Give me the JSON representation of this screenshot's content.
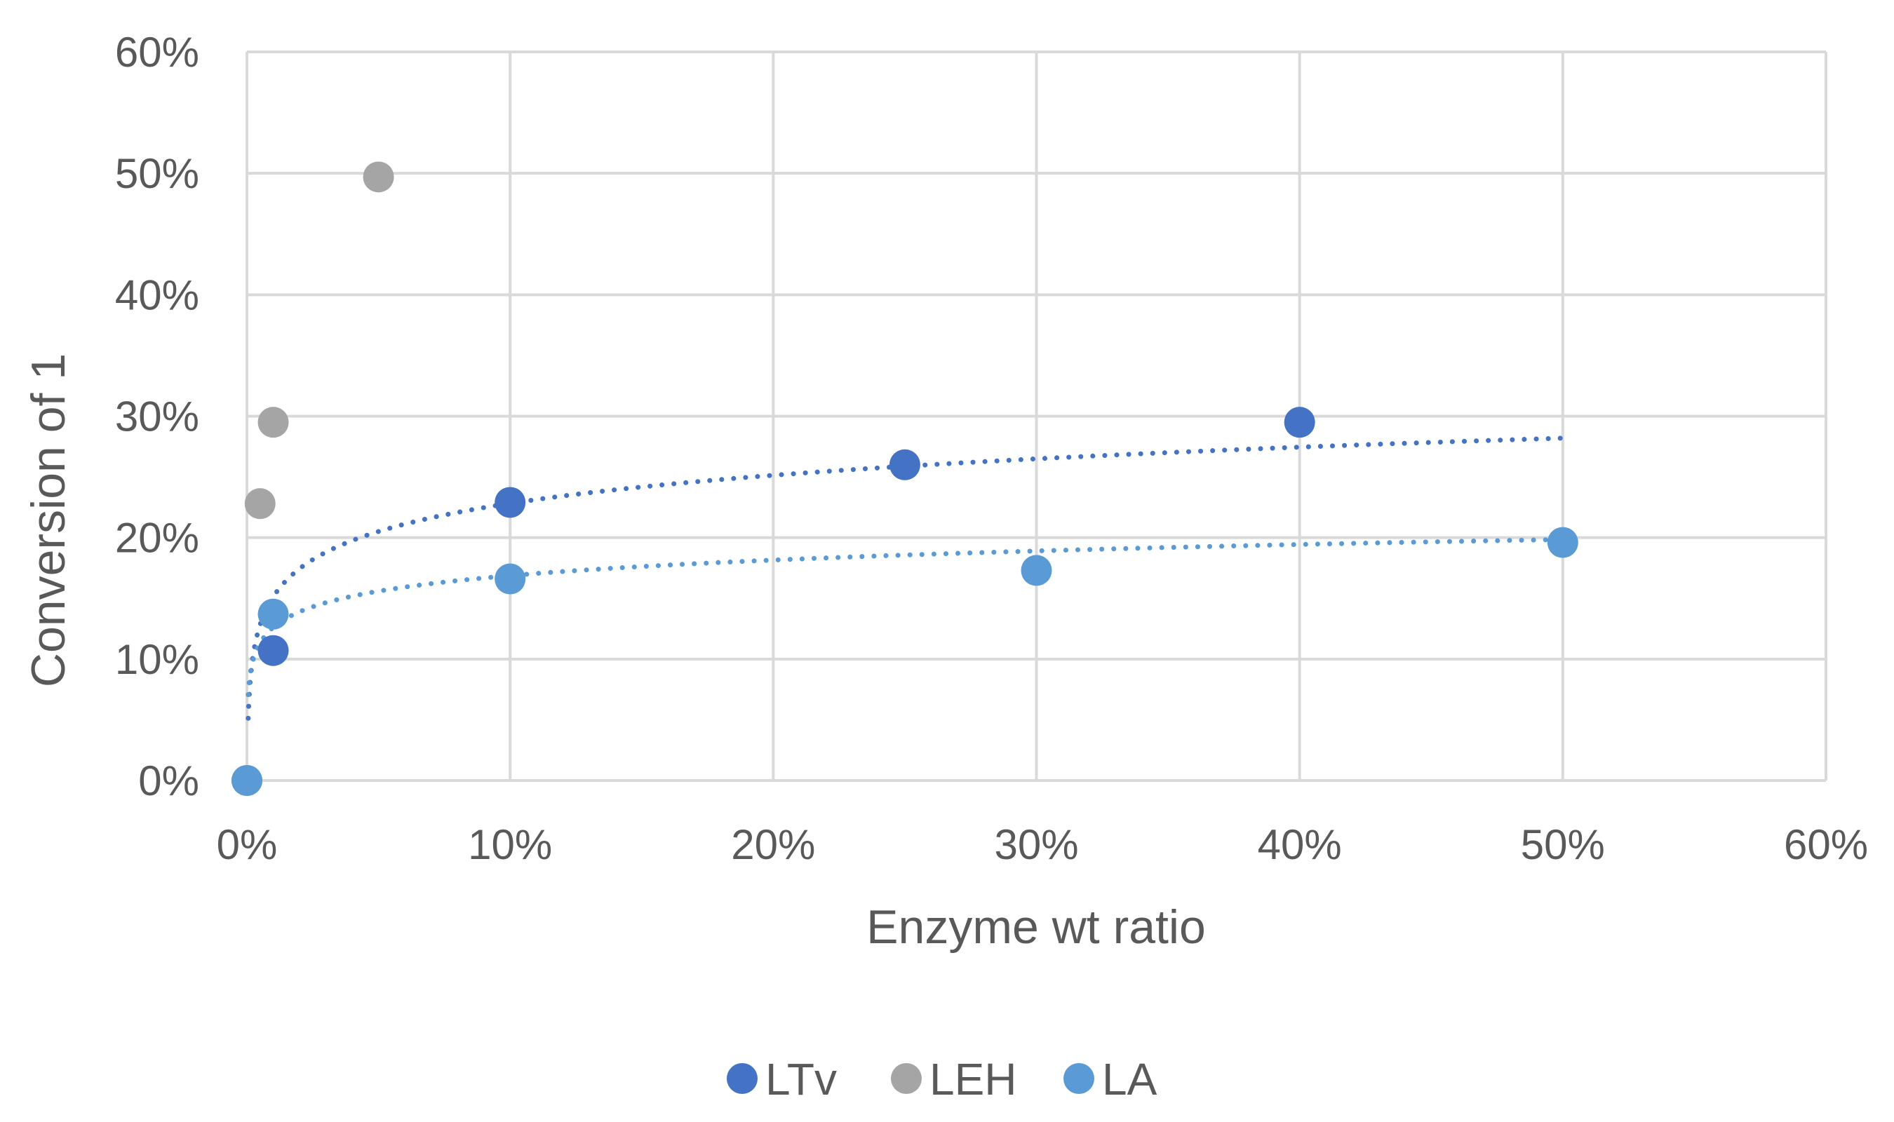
{
  "chart_data": {
    "type": "scatter",
    "title": "",
    "xlabel": "Enzyme wt ratio",
    "ylabel": "Conversion of 1",
    "xlim": [
      0,
      0.6
    ],
    "ylim": [
      0,
      0.6
    ],
    "x_ticks": [
      0,
      0.1,
      0.2,
      0.3,
      0.4,
      0.5,
      0.6
    ],
    "y_ticks": [
      0,
      0.1,
      0.2,
      0.3,
      0.4,
      0.5,
      0.6
    ],
    "x_tick_labels": [
      "0%",
      "10%",
      "20%",
      "30%",
      "40%",
      "50%",
      "60%"
    ],
    "y_tick_labels": [
      "0%",
      "10%",
      "20%",
      "30%",
      "40%",
      "50%",
      "60%"
    ],
    "grid": true,
    "legend_position": "bottom",
    "series": [
      {
        "name": "LTv",
        "color": "#4472c4",
        "x": [
          0,
          0.01,
          0.1,
          0.25,
          0.4
        ],
        "y": [
          0,
          0.107,
          0.229,
          0.26,
          0.295
        ],
        "trendline": {
          "type": "logarithmic",
          "a": 0.0334,
          "b": 0.3051,
          "x_range": [
            0.0005,
            0.5
          ]
        }
      },
      {
        "name": "LEH",
        "color": "#a5a5a5",
        "x": [
          0.005,
          0.01,
          0.05
        ],
        "y": [
          0.228,
          0.295,
          0.497
        ]
      },
      {
        "name": "LA",
        "color": "#5b9bd5",
        "x": [
          0,
          0.01,
          0.1,
          0.3,
          0.5
        ],
        "y": [
          0,
          0.137,
          0.166,
          0.173,
          0.196
        ],
        "trendline": {
          "type": "logarithmic",
          "a": 0.0185,
          "b": 0.2113,
          "x_range": [
            0.0005,
            0.5
          ]
        }
      }
    ]
  }
}
